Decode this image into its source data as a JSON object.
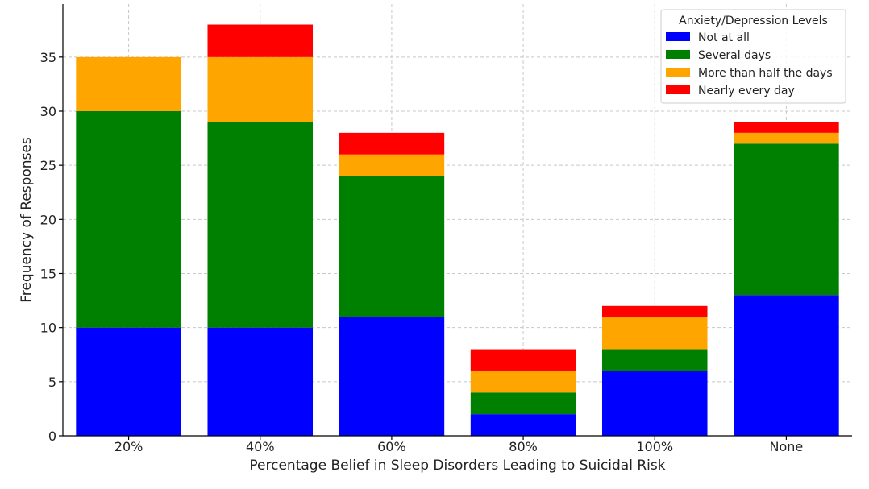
{
  "chart_data": {
    "type": "bar",
    "stacked": true,
    "title": "",
    "xlabel": "Percentage Belief in Sleep Disorders Leading to Suicidal Risk",
    "ylabel": "Frequency of Responses",
    "categories": [
      "20%",
      "40%",
      "60%",
      "80%",
      "100%",
      "None"
    ],
    "ylim": [
      0,
      40
    ],
    "yticks": [
      0,
      5,
      10,
      15,
      20,
      25,
      30,
      35
    ],
    "grid": true,
    "legend": {
      "title": "Anxiety/Depression Levels",
      "placement": "top-right"
    },
    "series": [
      {
        "name": "Not at all",
        "color": "#0000ff",
        "values": [
          10,
          10,
          11,
          2,
          6,
          13
        ]
      },
      {
        "name": "Several days",
        "color": "#008000",
        "values": [
          20,
          19,
          13,
          2,
          2,
          14
        ]
      },
      {
        "name": "More than half the days",
        "color": "#ffa500",
        "values": [
          5,
          6,
          2,
          2,
          3,
          1
        ]
      },
      {
        "name": "Nearly every day",
        "color": "#ff0000",
        "values": [
          0,
          3,
          2,
          2,
          1,
          1
        ]
      }
    ]
  }
}
